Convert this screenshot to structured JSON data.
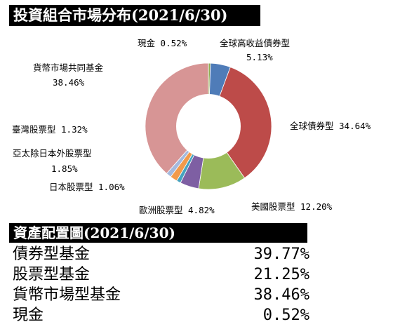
{
  "title1": "投資組合市場分布(2021/6/30)",
  "title2": "資產配置圖(2021/6/30)",
  "chart_data": {
    "type": "pie",
    "title": "投資組合市場分布(2021/6/30)",
    "slices": [
      {
        "name": "現金",
        "value": 0.52,
        "label": "0.52%",
        "color": "#8fae4e"
      },
      {
        "name": "全球高收益債券型",
        "value": 5.13,
        "label": "5.13%",
        "color": "#4f7cb8"
      },
      {
        "name": "全球債券型",
        "value": 34.64,
        "label": "34.64%",
        "color": "#bd4b49"
      },
      {
        "name": "美國股票型",
        "value": 12.2,
        "label": "12.20%",
        "color": "#9bbb59"
      },
      {
        "name": "歐洲股票型",
        "value": 4.82,
        "label": "4.82%",
        "color": "#7e5fa3"
      },
      {
        "name": "日本股票型",
        "value": 1.06,
        "label": "1.06%",
        "color": "#46a3bf"
      },
      {
        "name": "亞太除日本外股票型",
        "value": 1.85,
        "label": "1.85%",
        "color": "#f29a4a"
      },
      {
        "name": "臺灣股票型",
        "value": 1.32,
        "label": "1.32%",
        "color": "#a4b9dd"
      },
      {
        "name": "貨幣市場共同基金",
        "value": 38.46,
        "label": "38.46%",
        "color": "#d79595"
      }
    ]
  },
  "allocation": [
    {
      "name": "債券型基金",
      "value": "39.77%"
    },
    {
      "name": "股票型基金",
      "value": "21.25%"
    },
    {
      "name": "貨幣市場型基金",
      "value": "38.46%"
    },
    {
      "name": "現金",
      "value": "0.52%"
    }
  ]
}
